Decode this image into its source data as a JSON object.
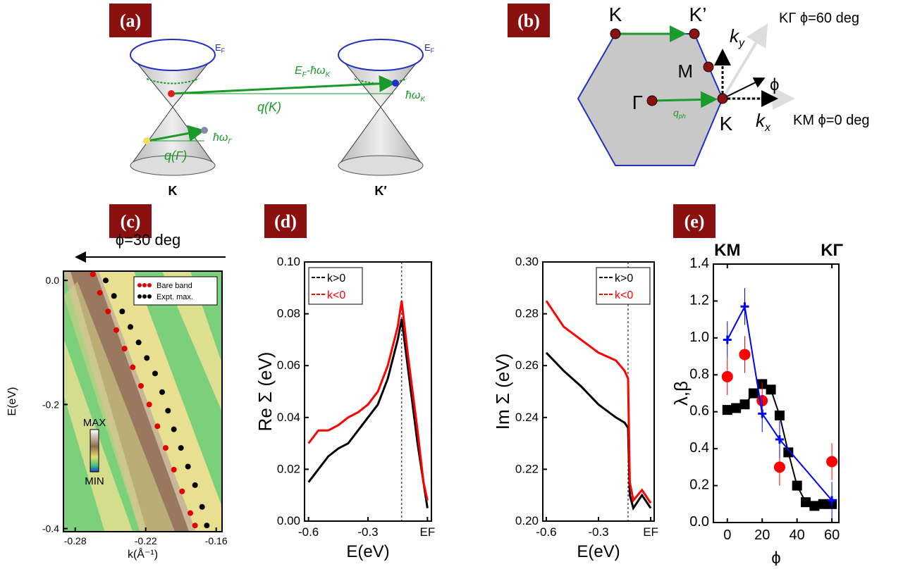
{
  "figure": {
    "a": {
      "label": "(a)",
      "ef1": [
        "E",
        "F"
      ],
      "ef2": [
        "E",
        "F"
      ],
      "efk": [
        "E",
        "F",
        "-ħω",
        "K"
      ],
      "hwk": [
        "ħω",
        "K"
      ],
      "qk": "q(K)",
      "hwg": [
        "ħω",
        "Γ"
      ],
      "qg": "q(Γ)",
      "k": "K",
      "kp": "K′"
    },
    "b": {
      "label": "(b)",
      "k1": "K",
      "kp": "K’",
      "m": "M",
      "g": "Γ",
      "k2": "K",
      "qph": [
        "q",
        "ph"
      ],
      "ky": [
        "k",
        "y"
      ],
      "kx": [
        "k",
        "x"
      ],
      "phi": "ϕ",
      "kg": "KΓ ϕ=60 deg",
      "km": "KM ϕ=0 deg"
    }
  },
  "chart_data": [
    {
      "type": "heatmap",
      "label": "(c)",
      "annotation": "ϕ=30 deg",
      "xlabel": "k(Å⁻¹)",
      "ylabel": "E(eV)",
      "colorbar_labels": [
        "MAX",
        "MIN"
      ],
      "xlim": [
        -0.29,
        -0.155
      ],
      "xticks": [
        -0.28,
        -0.22,
        -0.16
      ],
      "ylim": [
        -0.405,
        0.015
      ],
      "yticks": [
        {
          "value": 0,
          "label": "0.0"
        },
        -0.2,
        -0.4
      ],
      "series": [
        {
          "name": "Bare band",
          "color": "#e00000",
          "x": [
            -0.265,
            -0.259,
            -0.252,
            -0.245,
            -0.238,
            -0.231,
            -0.224,
            -0.217,
            -0.21,
            -0.203,
            -0.196,
            -0.189,
            -0.182,
            -0.178
          ],
          "values": [
            0.01,
            -0.02,
            -0.05,
            -0.08,
            -0.11,
            -0.14,
            -0.17,
            -0.2,
            -0.235,
            -0.27,
            -0.305,
            -0.34,
            -0.375,
            -0.395
          ]
        },
        {
          "name": "Expt. max.",
          "color": "#000000",
          "x": [
            -0.254,
            -0.247,
            -0.24,
            -0.233,
            -0.226,
            -0.219,
            -0.212,
            -0.206,
            -0.201,
            -0.196,
            -0.19,
            -0.184,
            -0.178,
            -0.172,
            -0.168
          ],
          "values": [
            0,
            -0.025,
            -0.05,
            -0.075,
            -0.1,
            -0.125,
            -0.15,
            -0.18,
            -0.21,
            -0.24,
            -0.27,
            -0.3,
            -0.33,
            -0.365,
            -0.395
          ]
        }
      ]
    },
    {
      "type": "line",
      "label": "(d)",
      "xlabel": "E(eV)",
      "ylabel": "Re Σ (eV)",
      "vline": -0.13,
      "xlim": [
        -0.62,
        0.02
      ],
      "xticks": [
        -0.6,
        -0.3,
        {
          "value": 0,
          "label": "EF"
        }
      ],
      "ylim": [
        0,
        0.1
      ],
      "yticks": [
        {
          "value": 0,
          "label": "0.00"
        },
        {
          "value": 0.02,
          "label": "0.02"
        },
        {
          "value": 0.04,
          "label": "0.04"
        },
        {
          "value": 0.06,
          "label": "0.06"
        },
        {
          "value": 0.08,
          "label": "0.08"
        },
        {
          "value": 0.1,
          "label": "0.10"
        }
      ],
      "x": [
        -0.6,
        -0.55,
        -0.5,
        -0.45,
        -0.4,
        -0.35,
        -0.3,
        -0.25,
        -0.2,
        -0.15,
        -0.13,
        -0.1,
        -0.05,
        -0.02,
        0
      ],
      "series": [
        {
          "name": "k>0",
          "color": "#000000",
          "values": [
            0.015,
            0.02,
            0.025,
            0.028,
            0.03,
            0.035,
            0.04,
            0.045,
            0.055,
            0.07,
            0.078,
            0.06,
            0.03,
            0.015,
            0.005
          ]
        },
        {
          "name": "k<0",
          "color": "#ff0000",
          "values": [
            0.03,
            0.035,
            0.035,
            0.037,
            0.04,
            0.042,
            0.045,
            0.05,
            0.06,
            0.075,
            0.085,
            0.065,
            0.035,
            0.015,
            0.008
          ]
        }
      ]
    },
    {
      "type": "line",
      "xlabel": "E(eV)",
      "ylabel": "Im Σ (eV)",
      "vline": -0.13,
      "xlim": [
        -0.62,
        0.02
      ],
      "xticks": [
        -0.6,
        -0.3,
        {
          "value": 0,
          "label": "EF"
        }
      ],
      "ylim": [
        0.2,
        0.3
      ],
      "yticks": [
        {
          "value": 0.2,
          "label": "0.20"
        },
        {
          "value": 0.22,
          "label": "0.22"
        },
        {
          "value": 0.24,
          "label": "0.24"
        },
        {
          "value": 0.26,
          "label": "0.26"
        },
        {
          "value": 0.28,
          "label": "0.28"
        },
        {
          "value": 0.3,
          "label": "0.30"
        }
      ],
      "x": [
        -0.6,
        -0.5,
        -0.4,
        -0.3,
        -0.2,
        -0.15,
        -0.13,
        -0.12,
        -0.1,
        -0.05,
        0
      ],
      "series": [
        {
          "name": "k>0",
          "color": "#000000",
          "values": [
            0.265,
            0.258,
            0.252,
            0.245,
            0.24,
            0.238,
            0.236,
            0.21,
            0.205,
            0.21,
            0.205
          ]
        },
        {
          "name": "k<0",
          "color": "#ff0000",
          "values": [
            0.285,
            0.275,
            0.27,
            0.265,
            0.262,
            0.258,
            0.255,
            0.215,
            0.208,
            0.212,
            0.207
          ]
        }
      ]
    },
    {
      "type": "scatter",
      "label": "(e)",
      "xlabel": "ϕ",
      "ylabel": "λ,β",
      "xlim": [
        -8,
        64
      ],
      "xticks": [
        0,
        20,
        40,
        60
      ],
      "x2ticks": [
        {
          "value": 0,
          "label": "KM"
        },
        {
          "value": 60,
          "label": "KΓ"
        }
      ],
      "ylim": [
        0,
        1.4
      ],
      "yticks": [
        {
          "value": 0,
          "label": "0.0"
        },
        0.2,
        0.4,
        0.6,
        0.8,
        {
          "value": 1,
          "label": "1.0"
        },
        1.2,
        1.4
      ],
      "series": [
        {
          "color": "#000000",
          "marker": "square",
          "line": true,
          "x": [
            0,
            5,
            10,
            15,
            20,
            25,
            30,
            35,
            40,
            45,
            50,
            55,
            60
          ],
          "values": [
            0.61,
            0.62,
            0.64,
            0.7,
            0.75,
            0.72,
            0.58,
            0.38,
            0.2,
            0.11,
            0.09,
            0.1,
            0.1
          ]
        },
        {
          "color": "#ff0000",
          "marker": "circle",
          "line": false,
          "x": [
            0,
            10,
            20,
            30,
            60
          ],
          "values": [
            0.79,
            0.91,
            0.66,
            0.3,
            0.33
          ],
          "errors": [
            0.1,
            0.1,
            0.1,
            0.1,
            0.1
          ]
        },
        {
          "color": "#0000ff",
          "marker": "plus",
          "line": true,
          "x": [
            0,
            10,
            20,
            30,
            60
          ],
          "values": [
            0.99,
            1.17,
            0.59,
            0.45,
            0.12
          ],
          "errors": [
            0.1,
            0.1,
            0.1,
            0.1,
            0.1
          ]
        }
      ]
    }
  ]
}
